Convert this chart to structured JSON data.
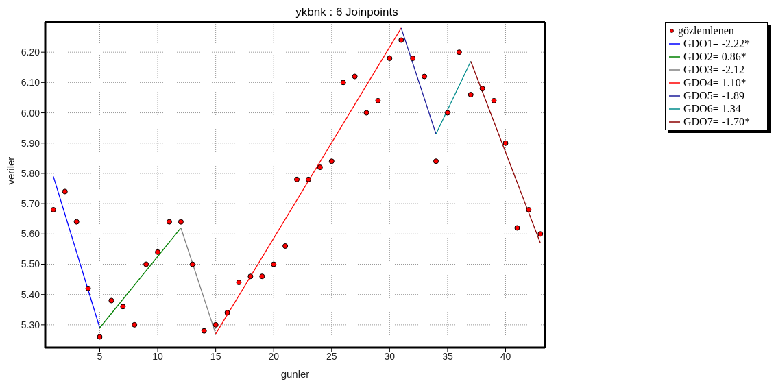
{
  "chart_data": {
    "type": "line",
    "title": "ykbnk : 6 Joinpoints",
    "xlabel": "gunler",
    "ylabel": "veriler",
    "xlim": [
      0.3,
      43.4
    ],
    "xticks": [
      5,
      10,
      15,
      20,
      25,
      30,
      35,
      40
    ],
    "ylim": [
      5.225,
      6.3
    ],
    "yticks": [
      {
        "value": 5.3,
        "label": "5.30"
      },
      {
        "value": 5.4,
        "label": "5.40"
      },
      {
        "value": 5.5,
        "label": "5.50"
      },
      {
        "value": 5.6,
        "label": "5.60"
      },
      {
        "value": 5.7,
        "label": "5.70"
      },
      {
        "value": 5.8,
        "label": "5.80"
      },
      {
        "value": 5.9,
        "label": "5.90"
      },
      {
        "value": 6.0,
        "label": "6.00"
      },
      {
        "value": 6.1,
        "label": "6.10"
      },
      {
        "value": 6.2,
        "label": "6.20"
      }
    ],
    "grid": true,
    "legend": "top right",
    "series": [
      {
        "type": "scatter",
        "name": "gözlemlenen",
        "color": "#ff0000",
        "marker": "circle",
        "x": [
          1,
          2,
          3,
          4,
          5,
          6,
          7,
          8,
          9,
          10,
          11,
          12,
          13,
          14,
          15,
          16,
          17,
          18,
          19,
          20,
          21,
          22,
          23,
          24,
          25,
          26,
          27,
          28,
          29,
          30,
          31,
          32,
          33,
          34,
          35,
          36,
          37,
          38,
          39,
          40,
          41,
          42,
          43
        ],
        "values": [
          5.68,
          5.74,
          5.64,
          5.42,
          5.26,
          5.38,
          5.36,
          5.3,
          5.5,
          5.54,
          5.64,
          5.64,
          5.5,
          5.28,
          5.3,
          5.34,
          5.44,
          5.46,
          5.46,
          5.5,
          5.56,
          5.78,
          5.78,
          5.82,
          5.84,
          6.1,
          6.12,
          6.0,
          6.04,
          6.18,
          6.24,
          6.18,
          6.12,
          5.84,
          6.0,
          6.2,
          6.06,
          6.08,
          6.04,
          5.9,
          5.62,
          5.68,
          5.6
        ]
      },
      {
        "name": "GDO1= -2.22*",
        "color": "#0000ff",
        "x": [
          1,
          5
        ],
        "values": [
          5.79,
          5.29
        ]
      },
      {
        "name": "GDO2= 0.86*",
        "color": "#008000",
        "x": [
          5,
          12
        ],
        "values": [
          5.29,
          5.62
        ]
      },
      {
        "name": "GDO3= -2.12",
        "color": "#808080",
        "x": [
          12,
          15
        ],
        "values": [
          5.62,
          5.27
        ]
      },
      {
        "name": "GDO4= 1.10*",
        "color": "#ff0000",
        "x": [
          15,
          31
        ],
        "values": [
          5.27,
          6.28
        ]
      },
      {
        "name": "GDO5= -1.89",
        "color": "#1c1c9a",
        "x": [
          31,
          34
        ],
        "values": [
          6.28,
          5.93
        ]
      },
      {
        "name": "GDO6= 1.34",
        "color": "#008b8b",
        "x": [
          34,
          37
        ],
        "values": [
          5.93,
          6.17
        ]
      },
      {
        "name": "GDO7= -1.70*",
        "color": "#8b0000",
        "x": [
          37,
          43
        ],
        "values": [
          6.17,
          5.57
        ]
      }
    ]
  }
}
